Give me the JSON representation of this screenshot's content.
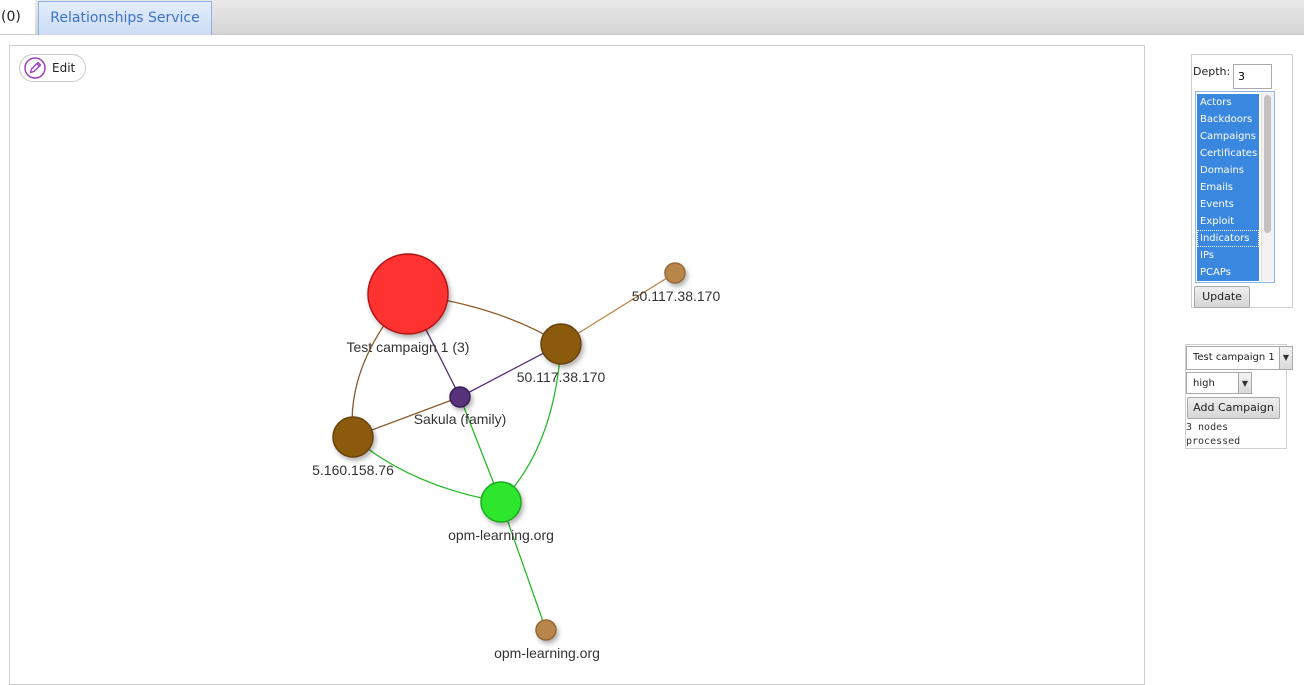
{
  "tabs": [
    {
      "label": "(0)"
    },
    {
      "label": "Relationships Service"
    }
  ],
  "graph_panel": {
    "edit_label": "Edit"
  },
  "graph": {
    "nodes": [
      {
        "id": "campaign",
        "label": "Test campaign 1 (3)",
        "color": "#ff3333",
        "kind": "campaign"
      },
      {
        "id": "ip1",
        "label": "50.117.38.170",
        "color": "#8b5a10",
        "kind": "ip"
      },
      {
        "id": "ip1_leaf",
        "label": "50.117.38.170",
        "color": "#b8864b",
        "kind": "ip-leaf"
      },
      {
        "id": "sakula",
        "label": "Sakula (family)",
        "color": "#55307a",
        "kind": "family"
      },
      {
        "id": "ip2",
        "label": "5.160.158.76",
        "color": "#8b5a10",
        "kind": "ip"
      },
      {
        "id": "domain",
        "label": "opm-learning.org",
        "color": "#2ee62e",
        "kind": "domain"
      },
      {
        "id": "domain_leaf",
        "label": "opm-learning.org",
        "color": "#b8864b",
        "kind": "domain-leaf"
      }
    ],
    "edges": [
      {
        "from": "campaign",
        "to": "ip1",
        "color": "#8b5a2b"
      },
      {
        "from": "campaign",
        "to": "ip2",
        "color": "#8b5a2b"
      },
      {
        "from": "campaign",
        "to": "sakula",
        "color": "#55307a"
      },
      {
        "from": "sakula",
        "to": "ip1",
        "color": "#55307a"
      },
      {
        "from": "sakula",
        "to": "ip2",
        "color": "#8b5a2b"
      },
      {
        "from": "sakula",
        "to": "domain",
        "color": "#2ab82a"
      },
      {
        "from": "ip1",
        "to": "ip1_leaf",
        "color": "#b8864b"
      },
      {
        "from": "ip1",
        "to": "domain",
        "color": "#2ab82a"
      },
      {
        "from": "ip2",
        "to": "domain",
        "color": "#2ab82a"
      },
      {
        "from": "domain",
        "to": "domain_leaf",
        "color": "#2ab82a"
      }
    ]
  },
  "controls": {
    "depth_label": "Depth:",
    "depth_value": "3",
    "types": [
      "Actors",
      "Backdoors",
      "Campaigns",
      "Certificates",
      "Domains",
      "Emails",
      "Events",
      "Exploit",
      "Indicators",
      "IPs",
      "PCAPs"
    ],
    "focused_type": "Indicators",
    "update_label": "Update"
  },
  "campaign_panel": {
    "campaign_value": "Test campaign 1",
    "confidence_value": "high",
    "add_label": "Add Campaign",
    "status_line1": "3 nodes",
    "status_line2": "processed"
  },
  "icons": {
    "edit": "pencil-icon",
    "dropdown": "chevron-down-icon"
  }
}
